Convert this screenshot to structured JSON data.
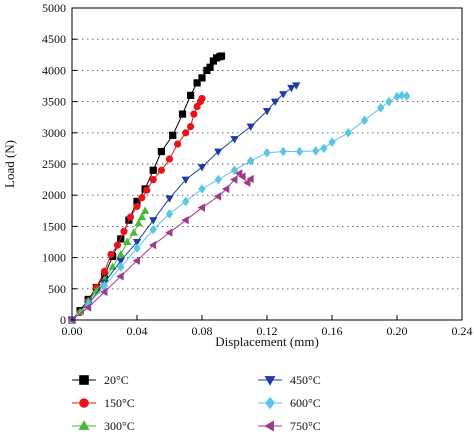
{
  "chart_data": {
    "type": "line",
    "title": "",
    "xlabel": "Displacement (mm)",
    "ylabel": "Load (N)",
    "xlim": [
      0,
      0.24
    ],
    "ylim": [
      0,
      5000
    ],
    "x_ticks": [
      0.0,
      0.04,
      0.08,
      0.12,
      0.16,
      0.2,
      0.24
    ],
    "x_tick_labels": [
      "0.00",
      "0.04",
      "0.08",
      "0.12",
      "0.16",
      "0.20",
      "0.24"
    ],
    "y_ticks": [
      0,
      500,
      1000,
      1500,
      2000,
      2500,
      3000,
      3500,
      4000,
      4500,
      5000
    ],
    "y_tick_labels": [
      "0",
      "500",
      "1000",
      "1500",
      "2000",
      "2500",
      "3000",
      "3500",
      "4000",
      "4500",
      "5000"
    ],
    "grid": "horizontal dotted",
    "legend_position": "bottom",
    "series": [
      {
        "name": "20°C",
        "color": "#000000",
        "marker": "square",
        "points": [
          [
            0.0,
            0
          ],
          [
            0.005,
            150
          ],
          [
            0.01,
            330
          ],
          [
            0.015,
            520
          ],
          [
            0.02,
            720
          ],
          [
            0.025,
            1020
          ],
          [
            0.03,
            1300
          ],
          [
            0.035,
            1600
          ],
          [
            0.04,
            1900
          ],
          [
            0.045,
            2100
          ],
          [
            0.05,
            2400
          ],
          [
            0.055,
            2700
          ],
          [
            0.062,
            2960
          ],
          [
            0.068,
            3300
          ],
          [
            0.073,
            3600
          ],
          [
            0.077,
            3800
          ],
          [
            0.08,
            3880
          ],
          [
            0.083,
            4000
          ],
          [
            0.085,
            4050
          ],
          [
            0.087,
            4150
          ],
          [
            0.089,
            4200
          ],
          [
            0.091,
            4220
          ],
          [
            0.092,
            4230
          ]
        ]
      },
      {
        "name": "150°C",
        "color": "#e8131b",
        "marker": "circle",
        "points": [
          [
            0.0,
            0
          ],
          [
            0.005,
            120
          ],
          [
            0.01,
            300
          ],
          [
            0.015,
            520
          ],
          [
            0.02,
            780
          ],
          [
            0.024,
            1050
          ],
          [
            0.028,
            1200
          ],
          [
            0.032,
            1420
          ],
          [
            0.036,
            1650
          ],
          [
            0.04,
            1820
          ],
          [
            0.043,
            1960
          ],
          [
            0.046,
            2080
          ],
          [
            0.05,
            2250
          ],
          [
            0.055,
            2400
          ],
          [
            0.06,
            2580
          ],
          [
            0.065,
            2820
          ],
          [
            0.07,
            3000
          ],
          [
            0.073,
            3100
          ],
          [
            0.075,
            3300
          ],
          [
            0.077,
            3420
          ],
          [
            0.079,
            3500
          ],
          [
            0.08,
            3550
          ]
        ]
      },
      {
        "name": "300°C",
        "color": "#46b93a",
        "marker": "triangle-up",
        "points": [
          [
            0.0,
            0
          ],
          [
            0.005,
            130
          ],
          [
            0.01,
            300
          ],
          [
            0.015,
            470
          ],
          [
            0.02,
            650
          ],
          [
            0.025,
            850
          ],
          [
            0.03,
            1050
          ],
          [
            0.034,
            1250
          ],
          [
            0.038,
            1400
          ],
          [
            0.041,
            1550
          ],
          [
            0.043,
            1650
          ],
          [
            0.045,
            1750
          ]
        ]
      },
      {
        "name": "450°C",
        "color": "#1f3fa0",
        "marker": "triangle-down",
        "points": [
          [
            0.0,
            0
          ],
          [
            0.01,
            250
          ],
          [
            0.02,
            600
          ],
          [
            0.03,
            950
          ],
          [
            0.04,
            1250
          ],
          [
            0.05,
            1600
          ],
          [
            0.06,
            1950
          ],
          [
            0.07,
            2250
          ],
          [
            0.08,
            2450
          ],
          [
            0.09,
            2700
          ],
          [
            0.1,
            2900
          ],
          [
            0.11,
            3100
          ],
          [
            0.12,
            3350
          ],
          [
            0.125,
            3500
          ],
          [
            0.13,
            3620
          ],
          [
            0.135,
            3720
          ],
          [
            0.138,
            3760
          ]
        ]
      },
      {
        "name": "600°C",
        "color": "#5cc5e5",
        "marker": "diamond",
        "points": [
          [
            0.0,
            0
          ],
          [
            0.01,
            250
          ],
          [
            0.02,
            550
          ],
          [
            0.03,
            850
          ],
          [
            0.04,
            1150
          ],
          [
            0.05,
            1450
          ],
          [
            0.06,
            1700
          ],
          [
            0.07,
            1900
          ],
          [
            0.08,
            2100
          ],
          [
            0.09,
            2250
          ],
          [
            0.1,
            2400
          ],
          [
            0.11,
            2550
          ],
          [
            0.12,
            2680
          ],
          [
            0.13,
            2700
          ],
          [
            0.14,
            2700
          ],
          [
            0.15,
            2710
          ],
          [
            0.155,
            2750
          ],
          [
            0.16,
            2850
          ],
          [
            0.17,
            3000
          ],
          [
            0.18,
            3200
          ],
          [
            0.19,
            3400
          ],
          [
            0.195,
            3500
          ],
          [
            0.2,
            3580
          ],
          [
            0.203,
            3600
          ],
          [
            0.206,
            3590
          ]
        ]
      },
      {
        "name": "750°C",
        "color": "#9d3a8c",
        "marker": "triangle-left",
        "points": [
          [
            0.0,
            0
          ],
          [
            0.01,
            200
          ],
          [
            0.02,
            450
          ],
          [
            0.03,
            700
          ],
          [
            0.04,
            950
          ],
          [
            0.05,
            1200
          ],
          [
            0.06,
            1400
          ],
          [
            0.07,
            1600
          ],
          [
            0.08,
            1800
          ],
          [
            0.09,
            1980
          ],
          [
            0.095,
            2100
          ],
          [
            0.1,
            2250
          ],
          [
            0.103,
            2350
          ],
          [
            0.105,
            2300
          ],
          [
            0.108,
            2200
          ],
          [
            0.11,
            2260
          ]
        ]
      }
    ]
  }
}
